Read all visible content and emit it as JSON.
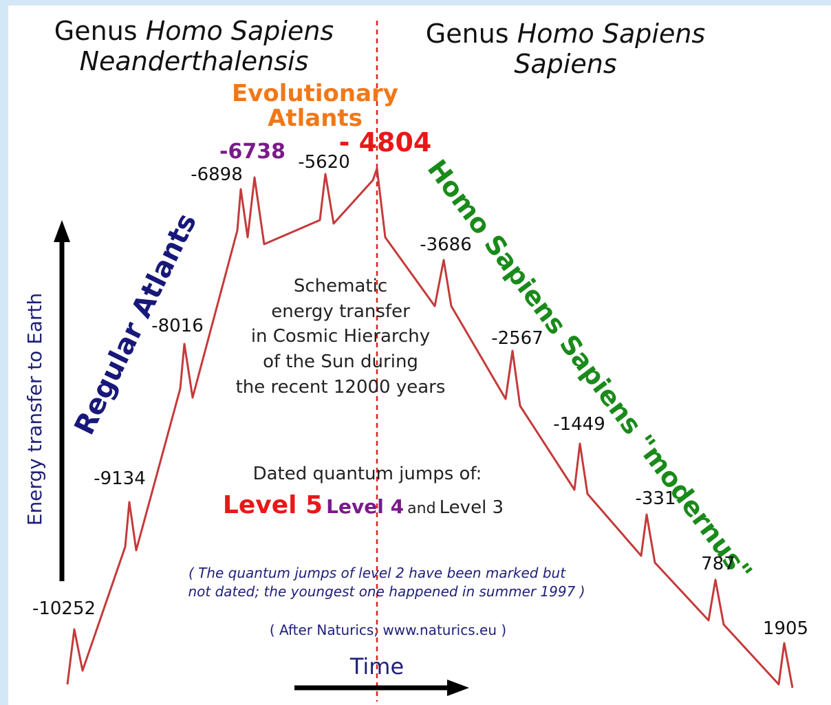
{
  "header": {
    "left": {
      "genus": "Genus",
      "species": "Homo Sapiens",
      "subspecies": "Neanderthalensis"
    },
    "right": {
      "genus": "Genus",
      "species": "Homo Sapiens",
      "subspecies": "Sapiens"
    }
  },
  "evolutionary": [
    "Evolutionary",
    "Atlants"
  ],
  "regular": "Regular Atlants",
  "modern": "Homo Sapiens Sapiens \"modernus\"",
  "y_axis": "Energy transfer to Earth",
  "x_axis": "Time",
  "description": [
    "Schematic",
    "energy transfer",
    "in Cosmic Hierarchy",
    "of the Sun during",
    "the recent 12000 years"
  ],
  "legend": {
    "intro": "Dated quantum jumps of:",
    "level5": "Level 5",
    "level4": "Level 4",
    "and": "and",
    "level3": "Level 3"
  },
  "note": [
    "( The quantum jumps of level 2 have been marked but",
    "not dated; the youngest one happened in summer 1997 )"
  ],
  "credit": "( After Naturics; www.naturics.eu )",
  "peaks": [
    "-10252",
    "-9134",
    "-8016",
    "-6898",
    "-6738",
    "-5620",
    "- 4804",
    "-3686",
    "-2567",
    "-1449",
    "-331",
    "787",
    "1905"
  ]
}
